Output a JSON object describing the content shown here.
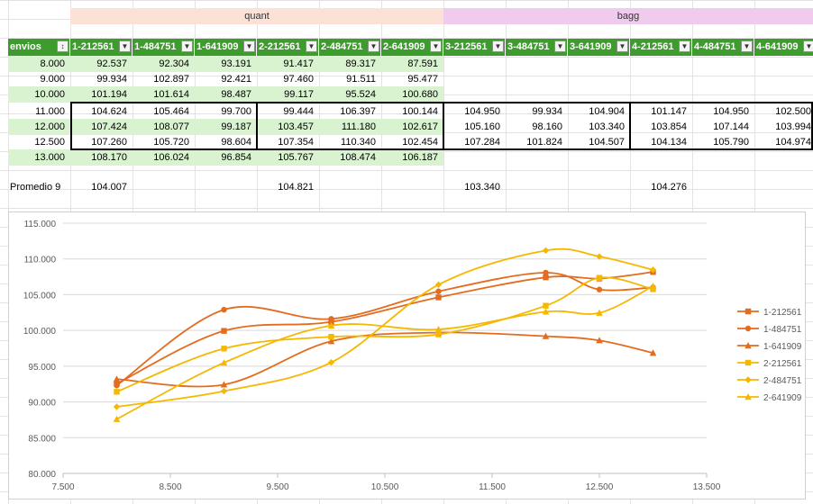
{
  "bands": {
    "quant": "quant",
    "bagg": "bagg"
  },
  "headers": [
    "envios",
    "1-212561",
    "1-484751",
    "1-641909",
    "2-212561",
    "2-484751",
    "2-641909",
    "3-212561",
    "3-484751",
    "3-641909",
    "4-212561",
    "4-484751",
    "4-641909"
  ],
  "rows": [
    [
      "8.000",
      "92.537",
      "92.304",
      "93.191",
      "91.417",
      "89.317",
      "87.591",
      "",
      "",
      "",
      "",
      "",
      ""
    ],
    [
      "9.000",
      "99.934",
      "102.897",
      "92.421",
      "97.460",
      "91.511",
      "95.477",
      "",
      "",
      "",
      "",
      "",
      ""
    ],
    [
      "10.000",
      "101.194",
      "101.614",
      "98.487",
      "99.117",
      "95.524",
      "100.680",
      "",
      "",
      "",
      "",
      "",
      ""
    ],
    [
      "11.000",
      "104.624",
      "105.464",
      "99.700",
      "99.444",
      "106.397",
      "100.144",
      "104.950",
      "99.934",
      "104.904",
      "101.147",
      "104.950",
      "102.500"
    ],
    [
      "12.000",
      "107.424",
      "108.077",
      "99.187",
      "103.457",
      "111.180",
      "102.617",
      "105.160",
      "98.160",
      "103.340",
      "103.854",
      "107.144",
      "103.994"
    ],
    [
      "12.500",
      "107.260",
      "105.720",
      "98.604",
      "107.354",
      "110.340",
      "102.454",
      "107.284",
      "101.824",
      "104.507",
      "104.134",
      "105.790",
      "104.974"
    ],
    [
      "13.000",
      "108.170",
      "106.024",
      "96.854",
      "105.767",
      "108.474",
      "106.187",
      "",
      "",
      "",
      "",
      "",
      ""
    ]
  ],
  "promedio": [
    "Promedio 9",
    "104.007",
    "",
    "",
    "104.821",
    "",
    "",
    "103.340",
    "",
    "",
    "104.276",
    "",
    ""
  ],
  "chart_data": {
    "type": "scatter",
    "xlim": [
      7.5,
      13.5
    ],
    "ylim": [
      80,
      115
    ],
    "xticks": [
      "7.500",
      "8.500",
      "9.500",
      "10.500",
      "11.500",
      "12.500",
      "13.500"
    ],
    "xtick_values": [
      7.5,
      8.5,
      9.5,
      10.5,
      11.5,
      12.5,
      13.5
    ],
    "yticks": [
      "80.000",
      "85.000",
      "90.000",
      "95.000",
      "100.000",
      "105.000",
      "110.000",
      "115.000"
    ],
    "ytick_values": [
      80,
      85,
      90,
      95,
      100,
      105,
      110,
      115
    ],
    "x": [
      8,
      9,
      10,
      11,
      12,
      12.5,
      13
    ],
    "legend_position": "right",
    "series": [
      {
        "name": "1-212561",
        "color": "#e36c1e",
        "marker": "square",
        "values": [
          92.537,
          99.934,
          101.194,
          104.624,
          107.424,
          107.26,
          108.17
        ]
      },
      {
        "name": "1-484751",
        "color": "#e36c1e",
        "marker": "circle",
        "values": [
          92.304,
          102.897,
          101.614,
          105.464,
          108.077,
          105.72,
          106.024
        ]
      },
      {
        "name": "1-641909",
        "color": "#e36c1e",
        "marker": "triangle",
        "values": [
          93.191,
          92.421,
          98.487,
          99.7,
          99.187,
          98.604,
          96.854
        ]
      },
      {
        "name": "2-212561",
        "color": "#f5b800",
        "marker": "square",
        "values": [
          91.417,
          97.46,
          99.117,
          99.444,
          103.457,
          107.354,
          105.767
        ]
      },
      {
        "name": "2-484751",
        "color": "#f5b800",
        "marker": "diamond",
        "values": [
          89.317,
          91.511,
          95.524,
          106.397,
          111.18,
          110.34,
          108.474
        ]
      },
      {
        "name": "2-641909",
        "color": "#f5b800",
        "marker": "triangle",
        "values": [
          87.591,
          95.477,
          100.68,
          100.144,
          102.617,
          102.454,
          106.187
        ]
      }
    ]
  }
}
